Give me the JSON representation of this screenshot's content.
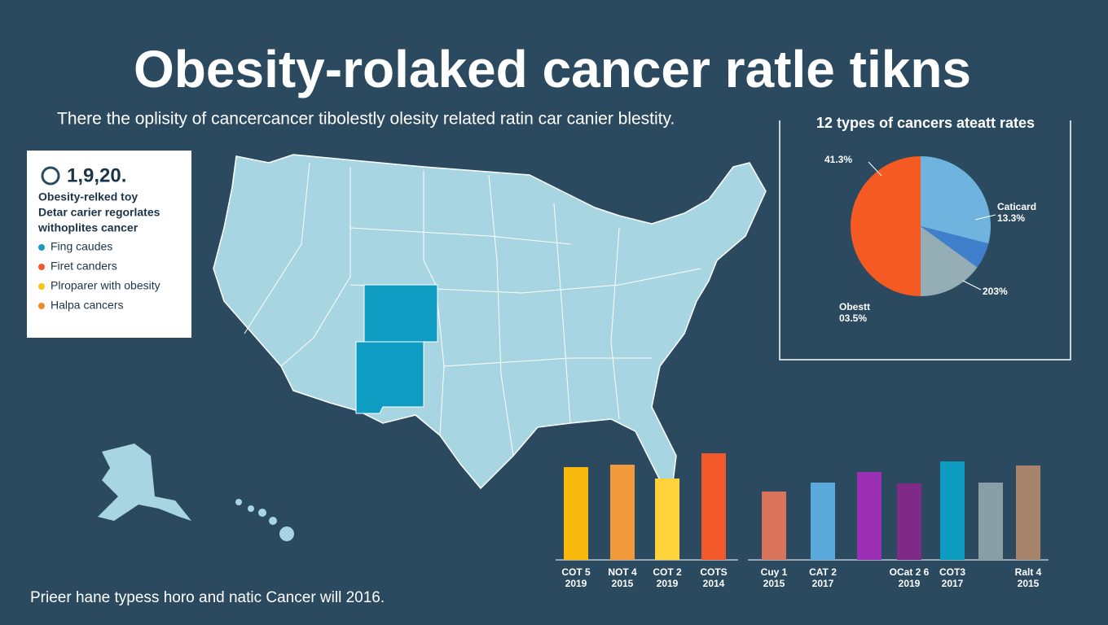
{
  "header": {
    "title": "Obesity-rolaked cancer ratle tikns",
    "subtitle": "There the oplisity of cancercancer tibolestly olesity related ratin car canier blestity."
  },
  "legend": {
    "stat": "1,9,20.",
    "lines": [
      "Obesity-relked toy",
      "Detar carier regorlates",
      "withoplites cancer"
    ],
    "items": [
      {
        "label": "Fing caudes",
        "color": "#1a9bc4"
      },
      {
        "label": "Firet canders",
        "color": "#ef5b2b"
      },
      {
        "label": "Plroparer with obesity",
        "color": "#f5c518"
      },
      {
        "label": "Halpa cancers",
        "color": "#f08a2a"
      }
    ]
  },
  "footer": "Prieer hane typess horo and natic Cancer will 2016.",
  "chart_data": [
    {
      "type": "pie",
      "title": "12 types of cancers ateatt rates",
      "values": [
        29,
        6,
        15,
        50
      ],
      "colors": [
        "#6fb4de",
        "#3f7fcb",
        "#95adb5",
        "#f45a22"
      ],
      "annotations": [
        "41.3%",
        "Caticard\n13.3%",
        "203%",
        "Obestt\n03.5%"
      ]
    },
    {
      "type": "bar",
      "categories": [
        "COT 5\n2019",
        "NOT 4\n2015",
        "COT 2\n2019",
        "COTS\n2014",
        "Cuy 1\n2015",
        "CAT 2\n2017",
        null,
        "OCat 2 6\n2019",
        "COT3\n2017",
        null,
        "Ralt 4\n2015"
      ],
      "values": [
        114,
        117,
        100,
        131,
        84,
        95,
        108,
        94,
        121,
        95,
        116
      ],
      "colors": [
        "#f9b90d",
        "#f39a3d",
        "#fdd23a",
        "#f2582a",
        "#d9735a",
        "#5aa9dc",
        "#9c30b4",
        "#7f2a86",
        "#0d9cc0",
        "#8a9ea6",
        "#a6836a"
      ]
    }
  ]
}
